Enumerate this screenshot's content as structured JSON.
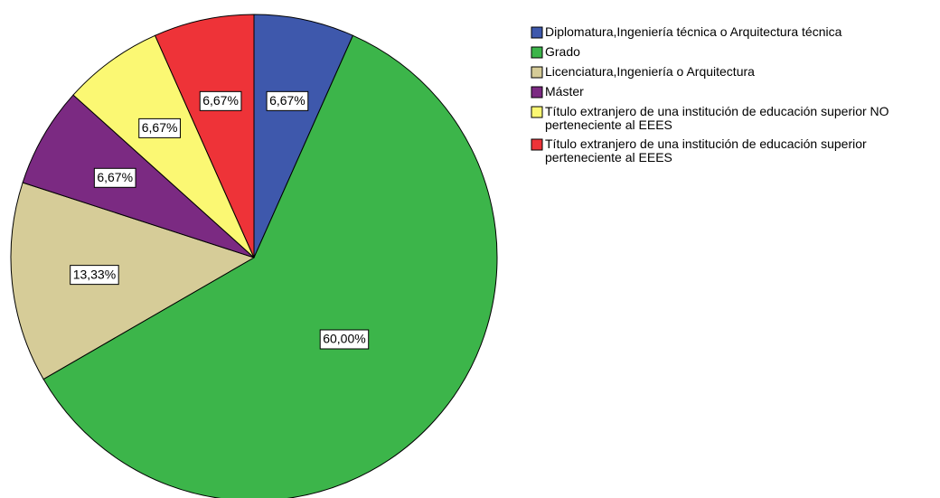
{
  "chart_data": {
    "type": "pie",
    "categories": [
      "Diplomatura,Ingeniería técnica o Arquitectura técnica",
      "Grado",
      "Licenciatura,Ingeniería o Arquitectura",
      "Máster",
      "Título extranjero de una institución de educación superior NO perteneciente al EEES",
      "Título extranjero de una institución de educación superior perteneciente al EEES"
    ],
    "values": [
      6.67,
      60,
      13.33,
      6.67,
      6.67,
      6.67
    ],
    "value_labels": [
      "6,67%",
      "60,00%",
      "13,33%",
      "6,67%",
      "6,67%",
      "6,67%"
    ],
    "colors": [
      "#3e58ac",
      "#3cb54a",
      "#d6cc98",
      "#7b2a82",
      "#fbf873",
      "#ee3338"
    ],
    "legend": "right"
  }
}
